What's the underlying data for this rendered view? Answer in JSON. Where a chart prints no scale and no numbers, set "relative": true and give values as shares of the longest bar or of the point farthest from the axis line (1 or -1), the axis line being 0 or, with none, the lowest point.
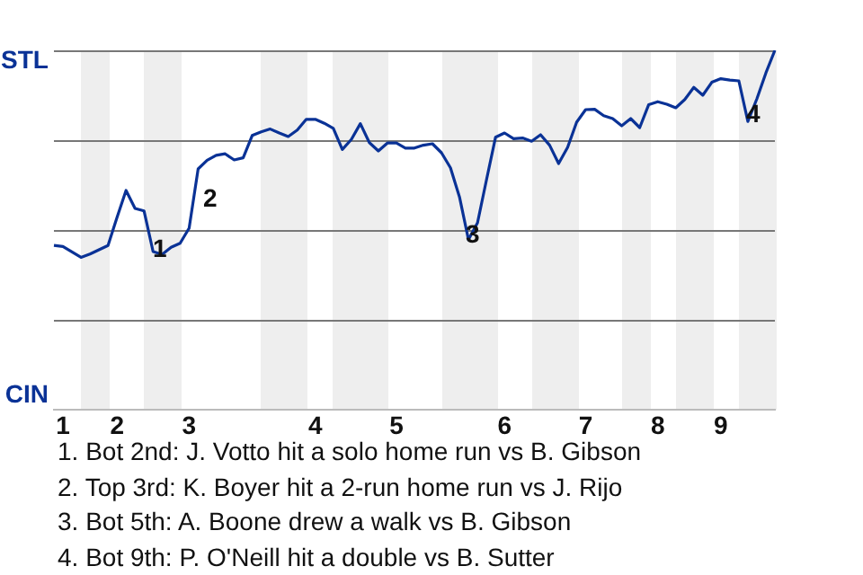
{
  "chart_data": {
    "type": "line",
    "relative": true,
    "categories": [
      null,
      "1",
      null,
      null,
      null,
      null,
      null,
      "2",
      null,
      null,
      null,
      null,
      null,
      null,
      null,
      "3",
      null,
      null,
      null,
      null,
      null,
      null,
      null,
      null,
      null,
      null,
      null,
      null,
      null,
      "4",
      null,
      null,
      null,
      null,
      null,
      null,
      null,
      null,
      "5",
      null,
      null,
      null,
      null,
      null,
      null,
      null,
      null,
      null,
      null,
      null,
      "6",
      null,
      null,
      null,
      null,
      null,
      null,
      null,
      null,
      "7",
      null,
      null,
      null,
      null,
      null,
      null,
      null,
      "8",
      null,
      null,
      null,
      null,
      null,
      null,
      "9",
      null,
      null,
      null,
      null,
      null,
      null
    ],
    "series": [
      {
        "color": "#0a3296",
        "values": [
          0.457,
          0.454,
          0.439,
          0.424,
          0.433,
          0.445,
          0.457,
          0.535,
          0.61,
          0.56,
          0.553,
          0.44,
          0.432,
          0.452,
          0.463,
          0.505,
          0.67,
          0.694,
          0.708,
          0.712,
          0.695,
          0.701,
          0.763,
          0.773,
          0.781,
          0.77,
          0.76,
          0.778,
          0.808,
          0.808,
          0.797,
          0.783,
          0.724,
          0.752,
          0.796,
          0.743,
          0.72,
          0.742,
          0.742,
          0.728,
          0.728,
          0.736,
          0.74,
          0.715,
          0.673,
          0.592,
          0.473,
          0.52,
          0.64,
          0.758,
          0.77,
          0.754,
          0.756,
          0.747,
          0.765,
          0.736,
          0.685,
          0.73,
          0.8,
          0.835,
          0.836,
          0.818,
          0.81,
          0.79,
          0.81,
          0.785,
          0.849,
          0.857,
          0.85,
          0.84,
          0.863,
          0.897,
          0.875,
          0.911,
          0.921,
          0.917,
          0.915,
          0.802,
          0.865,
          0.937,
          1
        ]
      }
    ],
    "ref_lines": [
      {
        "axis": "y",
        "value": 0.25,
        "color": "#777777"
      },
      {
        "axis": "y",
        "value": 0.5,
        "color": "#777777"
      },
      {
        "axis": "y",
        "value": 0.75,
        "color": "#777777"
      },
      {
        "axis": "y",
        "value": 1,
        "color": "#777777"
      }
    ],
    "marker": "none",
    "line_style": "solid",
    "annotations": [
      "STL",
      "CIN",
      "1",
      "2",
      "3",
      "4",
      "1. Bot 2nd: J. Votto hit a solo home run vs B. Gibson",
      "2. Top 3rd: K. Boyer hit a 2-run home run vs J. Rijo",
      "3. Bot 5th: A. Boone drew a walk vs B. Gibson",
      "4. Bot 9th: P. O'Neill hit a double vs B. Sutter"
    ]
  }
}
